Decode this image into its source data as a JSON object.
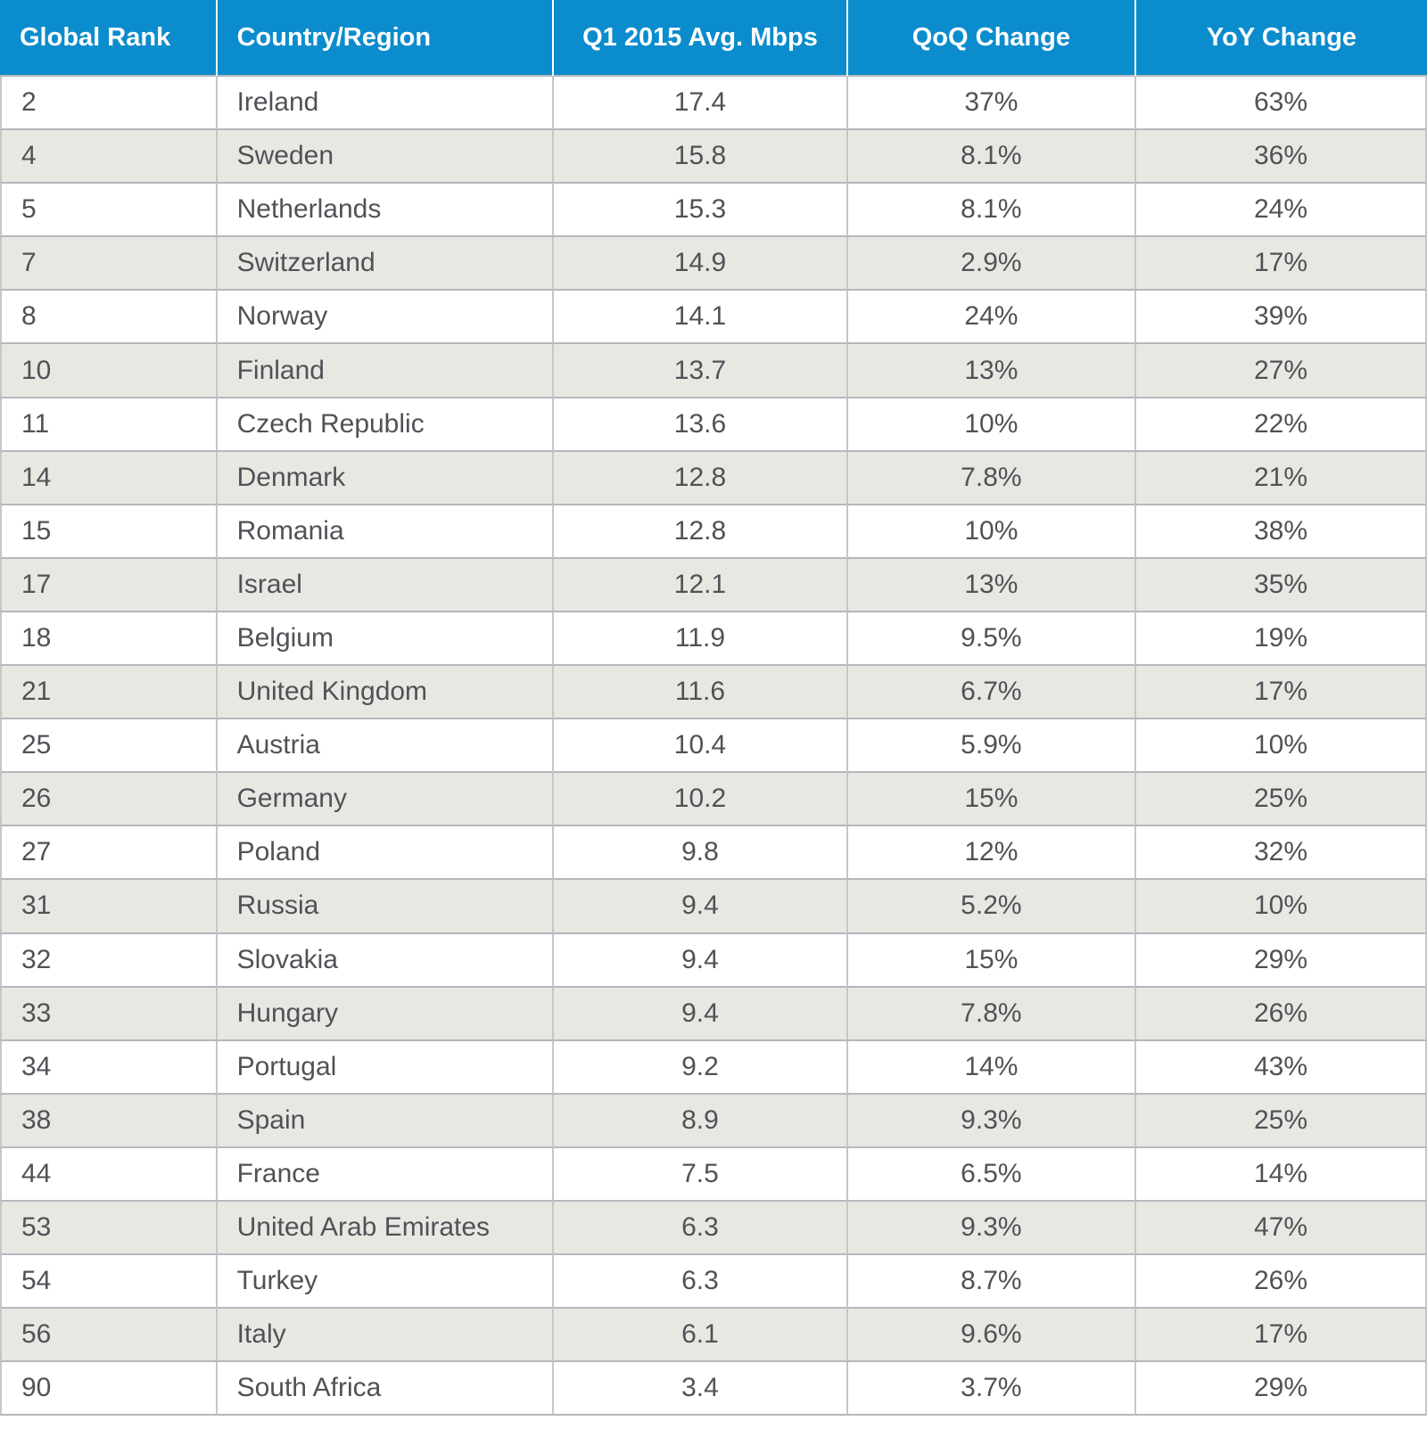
{
  "chart_data": {
    "type": "table",
    "columns": [
      "Global Rank",
      "Country/Region",
      "Q1 2015 Avg. Mbps",
      "QoQ Change",
      "YoY Change"
    ],
    "rows": [
      [
        "2",
        "Ireland",
        "17.4",
        "37%",
        "63%"
      ],
      [
        "4",
        "Sweden",
        "15.8",
        "8.1%",
        "36%"
      ],
      [
        "5",
        "Netherlands",
        "15.3",
        "8.1%",
        "24%"
      ],
      [
        "7",
        "Switzerland",
        "14.9",
        "2.9%",
        "17%"
      ],
      [
        "8",
        "Norway",
        "14.1",
        "24%",
        "39%"
      ],
      [
        "10",
        "Finland",
        "13.7",
        "13%",
        "27%"
      ],
      [
        "11",
        "Czech Republic",
        "13.6",
        "10%",
        "22%"
      ],
      [
        "14",
        "Denmark",
        "12.8",
        "7.8%",
        "21%"
      ],
      [
        "15",
        "Romania",
        "12.8",
        "10%",
        "38%"
      ],
      [
        "17",
        "Israel",
        "12.1",
        "13%",
        "35%"
      ],
      [
        "18",
        "Belgium",
        "11.9",
        "9.5%",
        "19%"
      ],
      [
        "21",
        "United Kingdom",
        "11.6",
        "6.7%",
        "17%"
      ],
      [
        "25",
        "Austria",
        "10.4",
        "5.9%",
        "10%"
      ],
      [
        "26",
        "Germany",
        "10.2",
        "15%",
        "25%"
      ],
      [
        "27",
        "Poland",
        "9.8",
        "12%",
        "32%"
      ],
      [
        "31",
        "Russia",
        "9.4",
        "5.2%",
        "10%"
      ],
      [
        "32",
        "Slovakia",
        "9.4",
        "15%",
        "29%"
      ],
      [
        "33",
        "Hungary",
        "9.4",
        "7.8%",
        "26%"
      ],
      [
        "34",
        "Portugal",
        "9.2",
        "14%",
        "43%"
      ],
      [
        "38",
        "Spain",
        "8.9",
        "9.3%",
        "25%"
      ],
      [
        "44",
        "France",
        "7.5",
        "6.5%",
        "14%"
      ],
      [
        "53",
        "United Arab Emirates",
        "6.3",
        "9.3%",
        "47%"
      ],
      [
        "54",
        "Turkey",
        "6.3",
        "8.7%",
        "26%"
      ],
      [
        "56",
        "Italy",
        "6.1",
        "9.6%",
        "17%"
      ],
      [
        "90",
        "South Africa",
        "3.4",
        "3.7%",
        "29%"
      ]
    ],
    "layout": {
      "grid": true,
      "alternating_rows": true,
      "numeric_columns_alignment": "center",
      "text_columns_alignment": "left"
    }
  },
  "colors": {
    "header_bg": "#0b8ccd",
    "header_text": "#ffffff",
    "header_divider": "#ffffff",
    "row_bg": "#ffffff",
    "row_alt_bg": "#e8e8e3",
    "body_text": "#4f5256",
    "border_h": "#b4b8ba",
    "border_v": "#c3c7c9"
  }
}
